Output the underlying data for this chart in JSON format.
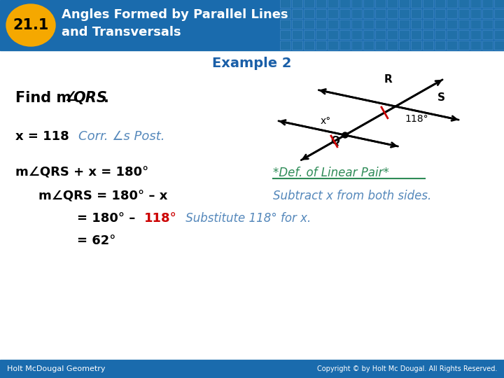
{
  "title_number": "21.1",
  "title_number_bg": "#F5A800",
  "title_text_line1": "Angles Formed by Parallel Lines",
  "title_text_line2": "and Transversals",
  "header_bg": "#1A6BAD",
  "header_text_color": "#FFFFFF",
  "example_label": "Example 2",
  "example_label_color": "#1A5FA8",
  "find_color": "#000000",
  "line2_right": "*Def. of Linear Pair*",
  "line2_right_color": "#2E8B57",
  "line3_right": "Subtract x from both sides.",
  "line3_right_color": "#5588BB",
  "line4_right": " Substitute 118° for x.",
  "line4_right_color": "#5588BB",
  "line4_red_color": "#CC0000",
  "line1_suffix_color": "#5588BB",
  "footer_bg": "#1A6BAD",
  "footer_left": "Holt McDougal Geometry",
  "footer_right": "Copyright © by Holt Mc Dougal. All Rights Reserved.",
  "footer_text_color": "#FFFFFF",
  "bg_color": "#FFFFFF"
}
